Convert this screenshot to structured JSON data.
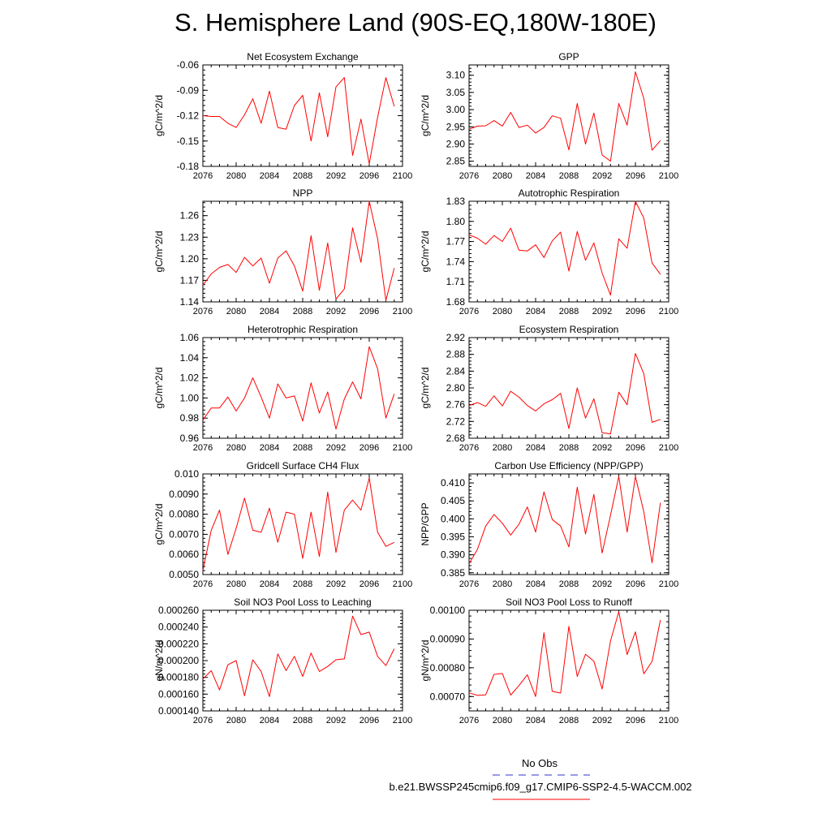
{
  "page": {
    "title": "S. Hemisphere Land (90S-EQ,180W-180E)"
  },
  "legend": {
    "obs_label": "No Obs",
    "obs_color": "#3333cc",
    "run_label": "b.e21.BWSSP245cmip6.f09_g17.CMIP6-SSP2-4.5-WACCM.002",
    "run_color": "#ff0000"
  },
  "chart_data": [
    {
      "type": "line",
      "title": "Net Ecosystem Exchange",
      "ylabel": "gC/m^2/d",
      "xlim": [
        2076,
        2100
      ],
      "xticks": [
        "2076",
        "2080",
        "2084",
        "2088",
        "2092",
        "2096",
        "2100"
      ],
      "ylim": [
        -0.18,
        -0.06
      ],
      "yticks": [
        "-0.18",
        "-0.15",
        "-0.12",
        "-0.09",
        "-0.06"
      ],
      "x": [
        2076,
        2077,
        2078,
        2079,
        2080,
        2081,
        2082,
        2083,
        2084,
        2085,
        2086,
        2087,
        2088,
        2089,
        2090,
        2091,
        2092,
        2093,
        2094,
        2095,
        2096,
        2097,
        2098,
        2099
      ],
      "series": [
        {
          "values": [
            -0.12,
            -0.121,
            -0.121,
            -0.129,
            -0.134,
            -0.119,
            -0.1,
            -0.129,
            -0.091,
            -0.134,
            -0.136,
            -0.108,
            -0.096,
            -0.15,
            -0.093,
            -0.145,
            -0.086,
            -0.075,
            -0.167,
            -0.124,
            -0.177,
            -0.122,
            -0.075,
            -0.109
          ],
          "color": "#ff0000"
        }
      ]
    },
    {
      "type": "line",
      "title": "GPP",
      "ylabel": "gC/m^2/d",
      "xlim": [
        2076,
        2100
      ],
      "xticks": [
        "2076",
        "2080",
        "2084",
        "2088",
        "2092",
        "2096",
        "2100"
      ],
      "ylim": [
        2.835,
        3.13
      ],
      "yticks": [
        "2.85",
        "2.90",
        "2.95",
        "3.00",
        "3.05",
        "3.10"
      ],
      "x": [
        2076,
        2077,
        2078,
        2079,
        2080,
        2081,
        2082,
        2083,
        2084,
        2085,
        2086,
        2087,
        2088,
        2089,
        2090,
        2091,
        2092,
        2093,
        2094,
        2095,
        2096,
        2097,
        2098,
        2099
      ],
      "series": [
        {
          "values": [
            2.943,
            2.952,
            2.953,
            2.968,
            2.952,
            2.992,
            2.948,
            2.955,
            2.932,
            2.948,
            2.982,
            2.975,
            2.883,
            3.018,
            2.9,
            2.99,
            2.868,
            2.85,
            3.018,
            2.955,
            3.11,
            3.033,
            2.882,
            2.91
          ],
          "color": "#ff0000"
        }
      ]
    },
    {
      "type": "line",
      "title": "NPP",
      "ylabel": "gC/m^2/d",
      "xlim": [
        2076,
        2100
      ],
      "xticks": [
        "2076",
        "2080",
        "2084",
        "2088",
        "2092",
        "2096",
        "2100"
      ],
      "ylim": [
        1.14,
        1.28
      ],
      "yticks": [
        "1.14",
        "1.17",
        "1.20",
        "1.23",
        "1.26"
      ],
      "x": [
        2076,
        2077,
        2078,
        2079,
        2080,
        2081,
        2082,
        2083,
        2084,
        2085,
        2086,
        2087,
        2088,
        2089,
        2090,
        2091,
        2092,
        2093,
        2094,
        2095,
        2096,
        2097,
        2098,
        2099
      ],
      "series": [
        {
          "values": [
            1.163,
            1.179,
            1.188,
            1.192,
            1.181,
            1.202,
            1.19,
            1.201,
            1.166,
            1.201,
            1.211,
            1.19,
            1.155,
            1.232,
            1.156,
            1.222,
            1.144,
            1.158,
            1.243,
            1.195,
            1.28,
            1.228,
            1.142,
            1.187
          ],
          "color": "#ff0000"
        }
      ]
    },
    {
      "type": "line",
      "title": "Autotrophic Respiration",
      "ylabel": "gC/m^2/d",
      "xlim": [
        2076,
        2100
      ],
      "xticks": [
        "2076",
        "2080",
        "2084",
        "2088",
        "2092",
        "2096",
        "2100"
      ],
      "ylim": [
        1.68,
        1.83
      ],
      "yticks": [
        "1.68",
        "1.71",
        "1.74",
        "1.77",
        "1.80",
        "1.83"
      ],
      "x": [
        2076,
        2077,
        2078,
        2079,
        2080,
        2081,
        2082,
        2083,
        2084,
        2085,
        2086,
        2087,
        2088,
        2089,
        2090,
        2091,
        2092,
        2093,
        2094,
        2095,
        2096,
        2097,
        2098,
        2099
      ],
      "series": [
        {
          "values": [
            1.78,
            1.775,
            1.766,
            1.779,
            1.77,
            1.79,
            1.757,
            1.756,
            1.765,
            1.746,
            1.771,
            1.784,
            1.726,
            1.785,
            1.742,
            1.768,
            1.723,
            1.69,
            1.774,
            1.76,
            1.83,
            1.805,
            1.738,
            1.721
          ],
          "color": "#ff0000"
        }
      ]
    },
    {
      "type": "line",
      "title": "Heterotrophic Respiration",
      "ylabel": "gC/m^2/d",
      "xlim": [
        2076,
        2100
      ],
      "xticks": [
        "2076",
        "2080",
        "2084",
        "2088",
        "2092",
        "2096",
        "2100"
      ],
      "ylim": [
        0.96,
        1.06
      ],
      "yticks": [
        "0.96",
        "0.98",
        "1.00",
        "1.02",
        "1.04",
        "1.06"
      ],
      "x": [
        2076,
        2077,
        2078,
        2079,
        2080,
        2081,
        2082,
        2083,
        2084,
        2085,
        2086,
        2087,
        2088,
        2089,
        2090,
        2091,
        2092,
        2093,
        2094,
        2095,
        2096,
        2097,
        2098,
        2099
      ],
      "series": [
        {
          "values": [
            0.978,
            0.99,
            0.99,
            1.001,
            0.987,
            1.0,
            1.02,
            1.001,
            0.98,
            1.014,
            1.0,
            1.002,
            0.977,
            1.015,
            0.985,
            1.006,
            0.969,
            0.999,
            1.016,
            0.999,
            1.051,
            1.029,
            0.98,
            1.004
          ],
          "color": "#ff0000"
        }
      ]
    },
    {
      "type": "line",
      "title": "Ecosystem Respiration",
      "ylabel": "gC/m^2/d",
      "xlim": [
        2076,
        2100
      ],
      "xticks": [
        "2076",
        "2080",
        "2084",
        "2088",
        "2092",
        "2096",
        "2100"
      ],
      "ylim": [
        2.68,
        2.92
      ],
      "yticks": [
        "2.68",
        "2.72",
        "2.76",
        "2.80",
        "2.84",
        "2.88",
        "2.92"
      ],
      "x": [
        2076,
        2077,
        2078,
        2079,
        2080,
        2081,
        2082,
        2083,
        2084,
        2085,
        2086,
        2087,
        2088,
        2089,
        2090,
        2091,
        2092,
        2093,
        2094,
        2095,
        2096,
        2097,
        2098,
        2099
      ],
      "series": [
        {
          "values": [
            2.758,
            2.765,
            2.756,
            2.781,
            2.757,
            2.792,
            2.778,
            2.758,
            2.745,
            2.762,
            2.772,
            2.787,
            2.703,
            2.8,
            2.728,
            2.774,
            2.693,
            2.69,
            2.79,
            2.76,
            2.882,
            2.834,
            2.718,
            2.725
          ],
          "color": "#ff0000"
        }
      ]
    },
    {
      "type": "line",
      "title": "Gridcell Surface CH4 Flux",
      "ylabel": "gC/m^2/d",
      "xlim": [
        2076,
        2100
      ],
      "xticks": [
        "2076",
        "2080",
        "2084",
        "2088",
        "2092",
        "2096",
        "2100"
      ],
      "ylim": [
        0.005,
        0.01
      ],
      "yticks": [
        "0.0050",
        "0.0060",
        "0.0070",
        "0.0080",
        "0.0090",
        "0.010"
      ],
      "x": [
        2076,
        2077,
        2078,
        2079,
        2080,
        2081,
        2082,
        2083,
        2084,
        2085,
        2086,
        2087,
        2088,
        2089,
        2090,
        2091,
        2092,
        2093,
        2094,
        2095,
        2096,
        2097,
        2098,
        2099
      ],
      "series": [
        {
          "values": [
            0.0052,
            0.0072,
            0.0082,
            0.006,
            0.0073,
            0.0088,
            0.0072,
            0.0071,
            0.0083,
            0.0066,
            0.0081,
            0.008,
            0.0058,
            0.0081,
            0.0059,
            0.0091,
            0.0061,
            0.0082,
            0.0087,
            0.0082,
            0.0098,
            0.0071,
            0.0064,
            0.0066
          ],
          "color": "#ff0000"
        }
      ]
    },
    {
      "type": "line",
      "title": "Carbon Use Efficiency (NPP/GPP)",
      "ylabel": "NPP/GPP",
      "xlim": [
        2076,
        2100
      ],
      "xticks": [
        "2076",
        "2080",
        "2084",
        "2088",
        "2092",
        "2096",
        "2100"
      ],
      "ylim": [
        0.3845,
        0.4125
      ],
      "yticks": [
        "0.385",
        "0.390",
        "0.395",
        "0.400",
        "0.405",
        "0.410"
      ],
      "x": [
        2076,
        2077,
        2078,
        2079,
        2080,
        2081,
        2082,
        2083,
        2084,
        2085,
        2086,
        2087,
        2088,
        2089,
        2090,
        2091,
        2092,
        2093,
        2094,
        2095,
        2096,
        2097,
        2098,
        2099
      ],
      "series": [
        {
          "values": [
            0.3875,
            0.3915,
            0.398,
            0.4012,
            0.3988,
            0.3955,
            0.3985,
            0.4033,
            0.3963,
            0.4075,
            0.3998,
            0.398,
            0.3922,
            0.4088,
            0.3958,
            0.4068,
            0.3905,
            0.401,
            0.4118,
            0.3963,
            0.4118,
            0.402,
            0.3878,
            0.4045
          ],
          "color": "#ff0000"
        }
      ]
    },
    {
      "type": "line",
      "title": "Soil NO3 Pool Loss to Leaching",
      "ylabel": "gN/m^2/d",
      "xlim": [
        2076,
        2100
      ],
      "xticks": [
        "2076",
        "2080",
        "2084",
        "2088",
        "2092",
        "2096",
        "2100"
      ],
      "ylim": [
        0.00014,
        0.00026
      ],
      "yticks": [
        "0.000140",
        "0.000160",
        "0.000180",
        "0.000200",
        "0.000220",
        "0.000240",
        "0.000260"
      ],
      "x": [
        2076,
        2077,
        2078,
        2079,
        2080,
        2081,
        2082,
        2083,
        2084,
        2085,
        2086,
        2087,
        2088,
        2089,
        2090,
        2091,
        2092,
        2093,
        2094,
        2095,
        2096,
        2097,
        2098,
        2099
      ],
      "series": [
        {
          "values": [
            0.000178,
            0.000188,
            0.000165,
            0.000195,
            0.0002,
            0.000158,
            0.000201,
            0.000187,
            0.000157,
            0.000208,
            0.000188,
            0.000205,
            0.000181,
            0.000209,
            0.000187,
            0.000193,
            0.000201,
            0.000202,
            0.000253,
            0.000231,
            0.000234,
            0.000205,
            0.000194,
            0.000214
          ],
          "color": "#ff0000"
        }
      ]
    },
    {
      "type": "line",
      "title": "Soil NO3 Pool Loss to Runoff",
      "ylabel": "gN/m^2/d",
      "xlim": [
        2076,
        2100
      ],
      "xticks": [
        "2076",
        "2080",
        "2084",
        "2088",
        "2092",
        "2096",
        "2100"
      ],
      "ylim": [
        0.00065,
        0.001
      ],
      "yticks": [
        "0.00070",
        "0.00080",
        "0.00090",
        "0.00100"
      ],
      "x": [
        2076,
        2077,
        2078,
        2079,
        2080,
        2081,
        2082,
        2083,
        2084,
        2085,
        2086,
        2087,
        2088,
        2089,
        2090,
        2091,
        2092,
        2093,
        2094,
        2095,
        2096,
        2097,
        2098,
        2099
      ],
      "series": [
        {
          "values": [
            0.000713,
            0.000704,
            0.000706,
            0.000777,
            0.00078,
            0.000705,
            0.000738,
            0.000776,
            0.0007,
            0.000922,
            0.000718,
            0.000712,
            0.000944,
            0.00077,
            0.000847,
            0.000823,
            0.000726,
            0.000893,
            0.000995,
            0.000846,
            0.000925,
            0.000779,
            0.000822,
            0.000966
          ],
          "color": "#ff0000"
        }
      ]
    }
  ]
}
